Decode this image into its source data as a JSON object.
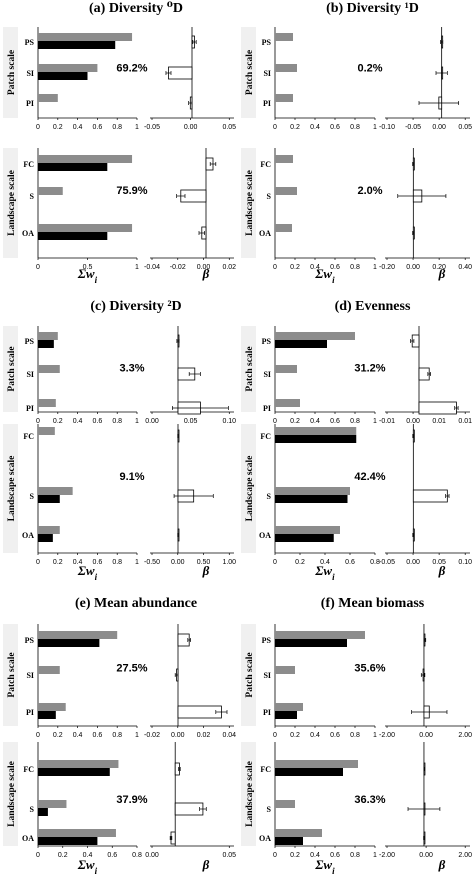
{
  "figure": {
    "scale_labels": [
      "Patch scale",
      "Landscape scale"
    ],
    "weight_axis_title": "Σw",
    "weight_axis_subscript": "i",
    "beta_axis_title": "β"
  },
  "colors": {
    "gray_bar": "#8c8c8c",
    "black_bar": "#000000",
    "coef_bar": "#ffffff",
    "panel_bg": "#f0f0f0"
  },
  "chart_data": [
    {
      "type": "bar",
      "panel": "(a)",
      "title": "Diversity ⁰D",
      "patch": {
        "categories": [
          "PS",
          "SI",
          "PI"
        ],
        "series": [
          {
            "values": [
              0.95,
              0.6,
              0.2
            ]
          },
          {
            "values": [
              0.78,
              0.5,
              null
            ]
          }
        ],
        "percent_label": "69.2%",
        "weight_ticks": [
          "0",
          "0.2",
          "0.4",
          "0.6",
          "0.8",
          "1"
        ],
        "weight_lim": [
          0,
          1
        ],
        "beta": [
          0.003,
          -0.028,
          -0.002
        ],
        "beta_err": [
          0.002,
          0.003,
          0.002
        ],
        "beta_ticks": [
          "-0.05",
          "0.00",
          "0.05"
        ],
        "beta_lim": [
          -0.05,
          0.05
        ]
      },
      "landscape": {
        "categories": [
          "FC",
          "S",
          "OA"
        ],
        "series": [
          {
            "values": [
              0.95,
              0.25,
              0.95
            ]
          },
          {
            "values": [
              0.7,
              null,
              0.7
            ]
          }
        ],
        "percent_label": "75.9%",
        "weight_ticks": [
          "0",
          "0.5",
          "1"
        ],
        "weight_lim": [
          0,
          1
        ],
        "beta": [
          0.005,
          -0.018,
          -0.003
        ],
        "beta_err": [
          0.002,
          0.003,
          0.002
        ],
        "beta_ticks": [
          "-0.04",
          "-0.02",
          "0.00",
          "0.02"
        ],
        "beta_lim": [
          -0.04,
          0.02
        ]
      }
    },
    {
      "type": "bar",
      "panel": "(b)",
      "title": "Diversity ¹D",
      "patch": {
        "categories": [
          "PS",
          "SI",
          "PI"
        ],
        "series": [
          {
            "values": [
              0.18,
              0.22,
              0.18
            ]
          },
          {
            "values": [
              null,
              null,
              null
            ]
          }
        ],
        "percent_label": "0.2%",
        "weight_ticks": [
          "0",
          "0.2",
          "0.4",
          "0.6",
          "0.8",
          "1"
        ],
        "weight_lim": [
          0,
          1
        ],
        "beta": [
          0.0,
          0.0,
          -0.005
        ],
        "beta_err": [
          0.002,
          0.01,
          0.035
        ],
        "beta_ticks": [
          "-0.10",
          "-0.05",
          "0.00",
          "0.05"
        ],
        "beta_lim": [
          -0.1,
          0.05
        ]
      },
      "landscape": {
        "categories": [
          "FC",
          "S",
          "OA"
        ],
        "series": [
          {
            "values": [
              0.18,
              0.22,
              0.17
            ]
          },
          {
            "values": [
              null,
              null,
              null
            ]
          }
        ],
        "percent_label": "2.0%",
        "weight_ticks": [
          "0",
          "0.2",
          "0.4",
          "0.6",
          "0.8",
          "1"
        ],
        "weight_lim": [
          0,
          1
        ],
        "beta": [
          0.0,
          0.06,
          0.0
        ],
        "beta_err": [
          0.005,
          0.17,
          0.005
        ],
        "beta_ticks": [
          "-0.20",
          "0.00",
          "0.20",
          "0.40"
        ],
        "beta_lim": [
          -0.2,
          0.4
        ]
      }
    },
    {
      "type": "bar",
      "panel": "(c)",
      "title": "Diversity ²D",
      "patch": {
        "categories": [
          "PS",
          "SI",
          "PI"
        ],
        "series": [
          {
            "values": [
              0.2,
              0.22,
              0.18
            ]
          },
          {
            "values": [
              0.16,
              null,
              null
            ]
          }
        ],
        "percent_label": "3.3%",
        "weight_ticks": [
          "0",
          "0.2",
          "0.4",
          "0.6",
          "0.8",
          "1"
        ],
        "weight_lim": [
          0,
          1
        ],
        "beta": [
          0.0,
          0.03,
          0.04
        ],
        "beta_err": [
          0.002,
          0.01,
          0.05
        ],
        "beta_ticks": [
          "0.00",
          "0.05",
          "0.10"
        ],
        "beta_lim": [
          -0.05,
          0.1
        ]
      },
      "landscape": {
        "categories": [
          "FC",
          "S",
          "OA"
        ],
        "series": [
          {
            "values": [
              0.17,
              0.35,
              0.22
            ]
          },
          {
            "values": [
              null,
              0.22,
              0.15
            ]
          }
        ],
        "percent_label": "9.1%",
        "weight_ticks": [
          "0",
          "0.2",
          "0.4",
          "0.6",
          "0.8",
          "1"
        ],
        "weight_lim": [
          0,
          1
        ],
        "beta": [
          0.0,
          0.28,
          0.0
        ],
        "beta_err": [
          0.005,
          0.35,
          0.005
        ],
        "beta_ticks": [
          "-0.50",
          "0.00",
          "0.50",
          "1.00"
        ],
        "beta_lim": [
          -0.5,
          1.0
        ]
      }
    },
    {
      "type": "bar",
      "panel": "(d)",
      "title": "Evenness",
      "patch": {
        "categories": [
          "PS",
          "SI",
          "PI"
        ],
        "series": [
          {
            "values": [
              0.8,
              0.22,
              0.25
            ]
          },
          {
            "values": [
              0.52,
              null,
              null
            ]
          }
        ],
        "percent_label": "31.2%",
        "weight_ticks": [
          "0",
          "0.2",
          "0.4",
          "0.6",
          "0.8",
          "1"
        ],
        "weight_lim": [
          0,
          1
        ],
        "beta": [
          -0.002,
          0.003,
          0.011
        ],
        "beta_err": [
          0.0005,
          0.0004,
          0.0005
        ],
        "beta_ticks": [
          "-0.01",
          "0.00",
          "0.01",
          "0.01"
        ],
        "beta_lim": [
          -0.01,
          0.015
        ]
      },
      "landscape": {
        "categories": [
          "FC",
          "S",
          "OA"
        ],
        "series": [
          {
            "values": [
              0.65,
              0.6,
              0.52
            ]
          },
          {
            "values": [
              0.65,
              0.58,
              0.47
            ]
          }
        ],
        "percent_label": "42.4%",
        "weight_ticks": [
          "0",
          "0.2",
          "0.4",
          "0.6",
          "0.8"
        ],
        "weight_lim": [
          0,
          0.8
        ],
        "beta": [
          0.0,
          0.06,
          0.0
        ],
        "beta_err": [
          0.001,
          0.003,
          0.001
        ],
        "beta_ticks": [
          "-0.05",
          "0.00",
          "0.05",
          "0.10"
        ],
        "beta_lim": [
          -0.05,
          0.1
        ]
      }
    },
    {
      "type": "bar",
      "panel": "(e)",
      "title": "Mean abundance",
      "patch": {
        "categories": [
          "PS",
          "SI",
          "PI"
        ],
        "series": [
          {
            "values": [
              0.8,
              0.22,
              0.28
            ]
          },
          {
            "values": [
              0.62,
              null,
              0.18
            ]
          }
        ],
        "percent_label": "27.5%",
        "weight_ticks": [
          "0",
          "0.2",
          "0.4",
          "0.6",
          "0.8",
          "1"
        ],
        "weight_lim": [
          0,
          1
        ],
        "beta": [
          0.008,
          -0.001,
          0.031
        ],
        "beta_err": [
          0.001,
          0.001,
          0.004
        ],
        "beta_ticks": [
          "-0.02",
          "0.00",
          "0.02",
          "0.04"
        ],
        "beta_lim": [
          -0.02,
          0.04
        ]
      },
      "landscape": {
        "categories": [
          "FC",
          "S",
          "OA"
        ],
        "series": [
          {
            "values": [
              0.65,
              0.23,
              0.63
            ]
          },
          {
            "values": [
              0.58,
              0.08,
              0.48
            ]
          }
        ],
        "percent_label": "37.9%",
        "weight_ticks": [
          "0",
          "0.2",
          "0.4",
          "0.6",
          "0.8"
        ],
        "weight_lim": [
          0,
          0.8
        ],
        "beta": [
          0.005,
          0.033,
          -0.005
        ],
        "beta_err": [
          0.001,
          0.004,
          0.001
        ],
        "beta_ticks": [
          "0.00",
          "0.05"
        ],
        "beta_lim": [
          -0.03,
          0.07
        ]
      }
    },
    {
      "type": "bar",
      "panel": "(f)",
      "title": "Mean biomass",
      "patch": {
        "categories": [
          "PS",
          "SI",
          "PI"
        ],
        "series": [
          {
            "values": [
              0.9,
              0.2,
              0.28
            ]
          },
          {
            "values": [
              0.72,
              null,
              0.22
            ]
          }
        ],
        "percent_label": "35.6%",
        "weight_ticks": [
          "0",
          "0.2",
          "0.4",
          "0.6",
          "0.8",
          "1"
        ],
        "weight_lim": [
          0,
          1
        ],
        "beta": [
          0.05,
          -0.05,
          0.3
        ],
        "beta_err": [
          0.05,
          0.1,
          1.0
        ],
        "beta_ticks": [
          "-2.00",
          "0.00",
          "2.00"
        ],
        "beta_lim": [
          -2.2,
          2.6
        ]
      },
      "landscape": {
        "categories": [
          "FC",
          "S",
          "OA"
        ],
        "series": [
          {
            "values": [
              0.83,
              0.2,
              0.47
            ]
          },
          {
            "values": [
              0.68,
              null,
              0.28
            ]
          }
        ],
        "percent_label": "36.3%",
        "weight_ticks": [
          "0",
          "0.2",
          "0.4",
          "0.6",
          "0.8",
          "1"
        ],
        "weight_lim": [
          0,
          1
        ],
        "beta": [
          0.02,
          0.0,
          0.0
        ],
        "beta_err": [
          0.02,
          0.9,
          0.02
        ],
        "beta_ticks": [
          "-2.00",
          "0.00",
          "2.00"
        ],
        "beta_lim": [
          -2.2,
          2.6
        ]
      }
    }
  ]
}
